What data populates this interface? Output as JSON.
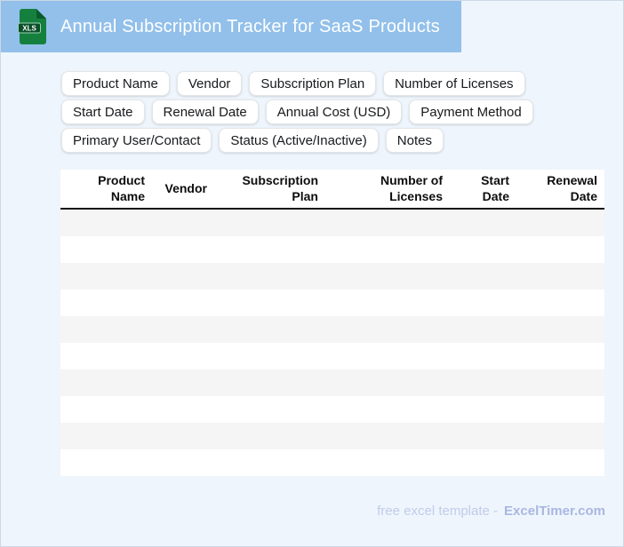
{
  "header": {
    "title": "Annual Subscription Tracker for SaaS Products",
    "icon_text": "XLS"
  },
  "field_chips": [
    "Product Name",
    "Vendor",
    "Subscription Plan",
    "Number of Licenses",
    "Start Date",
    "Renewal Date",
    "Annual Cost (USD)",
    "Payment Method",
    "Primary User/Contact",
    "Status (Active/Inactive)",
    "Notes"
  ],
  "table": {
    "columns": [
      "Product Name",
      "Vendor",
      "Subscription Plan",
      "Number of Licenses",
      "Start Date",
      "Renewal Date"
    ],
    "row_count": 10,
    "rows": [
      [],
      [],
      [],
      [],
      [],
      [],
      [],
      [],
      [],
      []
    ]
  },
  "footer": {
    "text": "free excel template -",
    "brand": "ExcelTimer.com"
  },
  "colors": {
    "banner_bg": "#92c0ea",
    "page_bg": "#eef5fc",
    "icon_green": "#15803d",
    "icon_green_dark": "#0b5a2e",
    "row_stripe": "#f5f5f6",
    "header_rule": "#151515",
    "footer_text": "#c1cbea",
    "footer_brand": "#a9b7e1"
  }
}
